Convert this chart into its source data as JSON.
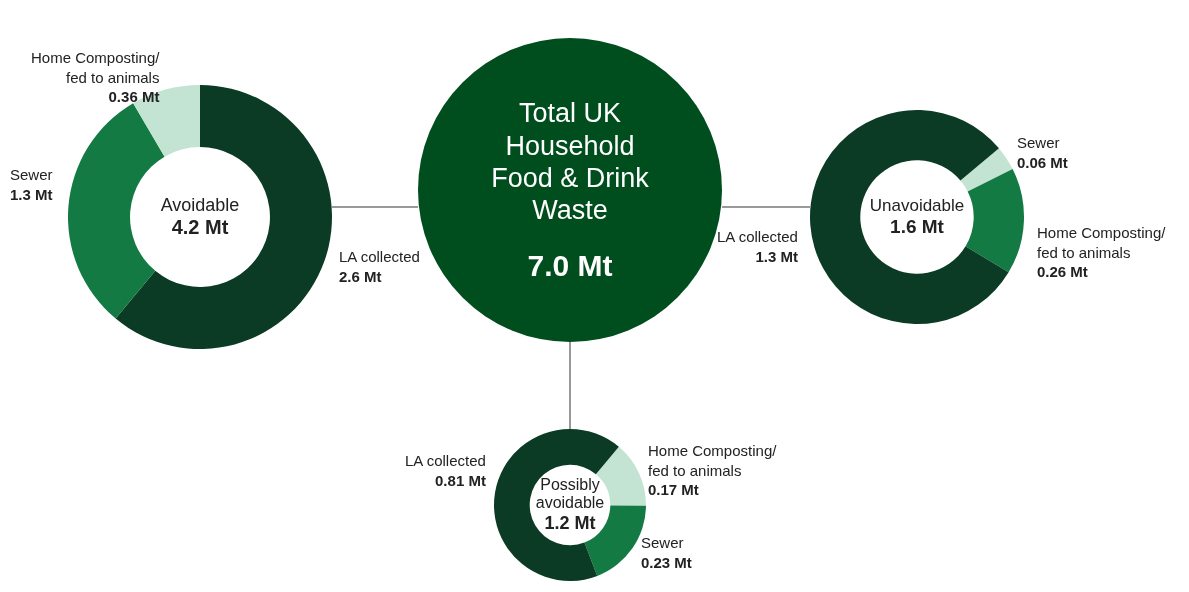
{
  "chart_data": [
    {
      "type": "donut",
      "title": "Avoidable",
      "subtitle": "4.2 Mt",
      "categories": [
        "LA collected",
        "Sewer",
        "Home Composting/\nfed to animals"
      ],
      "values": [
        2.6,
        1.3,
        0.36
      ],
      "colors": [
        "#0b3b24",
        "#137a43",
        "#c3e3d3"
      ],
      "value_labels": [
        "2.6 Mt",
        "1.3 Mt",
        "0.36 Mt"
      ]
    },
    {
      "type": "other",
      "title": "Total UK Household Food & Drink Waste",
      "subtitle": "7.0 Mt",
      "color": "#004d1e"
    },
    {
      "type": "donut",
      "title": "Unavoidable",
      "subtitle": "1.6 Mt",
      "categories": [
        "Sewer",
        "Home Composting/\nfed to animals",
        "LA collected"
      ],
      "values": [
        0.06,
        0.26,
        1.3
      ],
      "colors": [
        "#c3e3d3",
        "#137a43",
        "#0b3b24"
      ],
      "value_labels": [
        "0.06 Mt",
        "0.26 Mt",
        "1.3 Mt"
      ]
    },
    {
      "type": "donut",
      "title": "Possibly avoidable",
      "subtitle": "1.2 Mt",
      "categories": [
        "Home Composting/\nfed to animals",
        "Sewer",
        "LA collected"
      ],
      "values": [
        0.17,
        0.23,
        0.81
      ],
      "colors": [
        "#c3e3d3",
        "#137a43",
        "#0b3b24"
      ],
      "value_labels": [
        "0.17 Mt",
        "0.23 Mt",
        "0.81 Mt"
      ]
    }
  ]
}
